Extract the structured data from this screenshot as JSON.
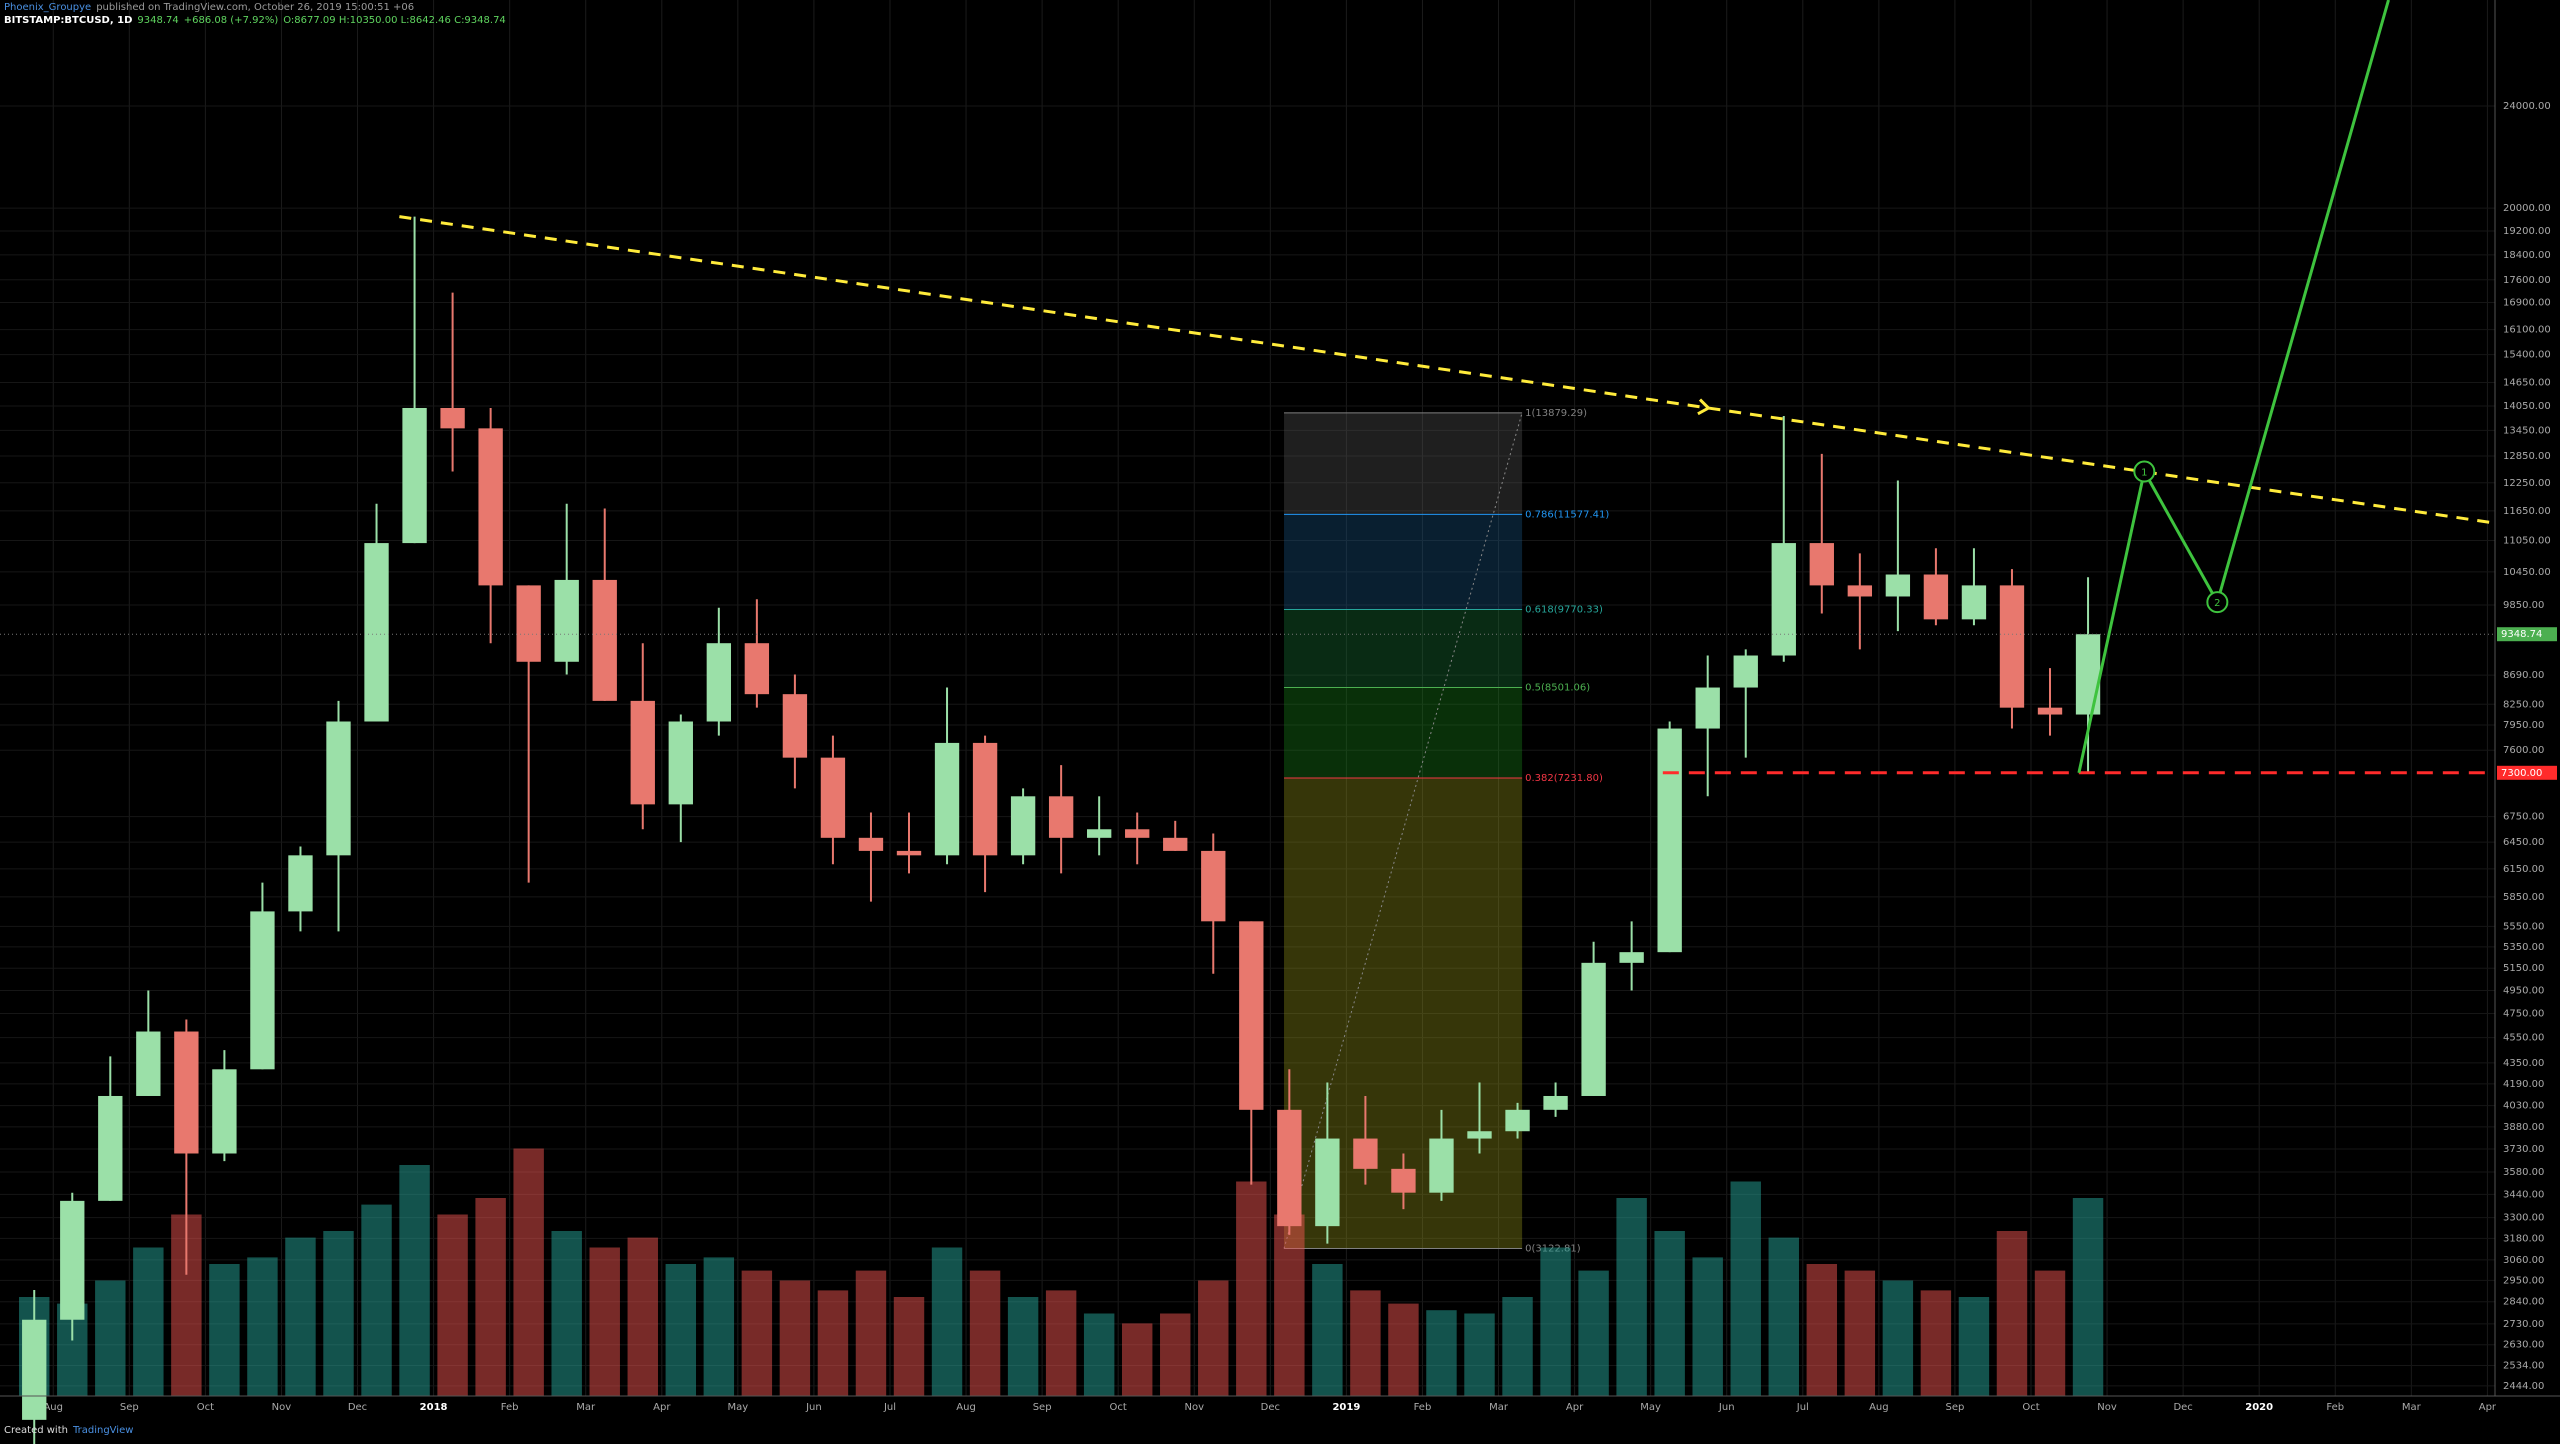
{
  "chart_data": {
    "type": "candlestick",
    "author": "Phoenix_Groupye",
    "title": "published on TradingView.com, October 26, 2019 15:00:51 +06",
    "legend": {
      "symbol": "BITSTAMP:BTCUSD, 1D",
      "last": "9348.74",
      "change": "+686.08 (+7.92%)",
      "ohlc": "O:8677.09 H:10350.00 L:8642.46 C:9348.74"
    },
    "footer": "Created with",
    "brand": "TradingView",
    "log_scale": true,
    "grid": true,
    "up_color": "#9be0a8",
    "down_color": "#e8786e",
    "volume_up_color": "#26a69a",
    "volume_down_color": "#ef5350",
    "x": [
      -0.5,
      0,
      0.5,
      1,
      1.5,
      2,
      2.5,
      3,
      3.5,
      4,
      4.5,
      5,
      5.5,
      6,
      6.5,
      7,
      7.5,
      8,
      8.5,
      9,
      9.5,
      10,
      10.5,
      11,
      11.5,
      12,
      12.5,
      13,
      13.5,
      14,
      14.5,
      15,
      15.5,
      16,
      16.5,
      17,
      17.5,
      18,
      18.5,
      19,
      19.5,
      20,
      20.5,
      21,
      21.5,
      22,
      22.5,
      23,
      23.5,
      24,
      24.5,
      25,
      25.5,
      26,
      26.5
    ],
    "open": [
      2300,
      2750,
      3400,
      4100,
      4600,
      3700,
      4300,
      5700,
      6300,
      8000,
      11000,
      14000,
      13500,
      10200,
      8900,
      10300,
      8300,
      6900,
      8000,
      9200,
      8400,
      7500,
      6500,
      6350,
      6300,
      7700,
      6300,
      7000,
      6500,
      6600,
      6500,
      6350,
      5600,
      4000,
      3250,
      3800,
      3600,
      3450,
      3800,
      3850,
      4000,
      4100,
      5200,
      5300,
      7900,
      8500,
      9000,
      11000,
      10200,
      10000,
      10400,
      9600,
      10200,
      8200,
      8100
    ],
    "high": [
      2900,
      3450,
      4400,
      4950,
      4700,
      4450,
      6000,
      6400,
      8300,
      11800,
      19700,
      17200,
      14000,
      10200,
      11800,
      11700,
      9200,
      8100,
      9800,
      9950,
      8700,
      7800,
      6800,
      6800,
      8500,
      7800,
      7100,
      7400,
      7000,
      6800,
      6700,
      6550,
      5600,
      4300,
      4200,
      4100,
      3700,
      4000,
      4200,
      4050,
      4200,
      5400,
      5600,
      8000,
      9000,
      9100,
      13800,
      12900,
      10800,
      12300,
      10900,
      10900,
      10500,
      8800,
      10350
    ],
    "low": [
      2200,
      2650,
      3400,
      4100,
      2980,
      3650,
      4300,
      5500,
      5500,
      8000,
      11000,
      12500,
      9200,
      6000,
      8700,
      8300,
      6600,
      6450,
      7800,
      8200,
      7100,
      6200,
      5800,
      6100,
      6200,
      5900,
      6200,
      6100,
      6300,
      6200,
      6350,
      5100,
      3500,
      3200,
      3150,
      3500,
      3350,
      3400,
      3700,
      3800,
      3950,
      4100,
      4950,
      5300,
      7000,
      7500,
      8900,
      9700,
      9100,
      9400,
      9500,
      9500,
      7900,
      7800,
      7300
    ],
    "close": [
      2750,
      3400,
      4100,
      4600,
      3700,
      4300,
      5700,
      6300,
      8000,
      11000,
      14000,
      13500,
      10200,
      8900,
      10300,
      8300,
      6900,
      8000,
      9200,
      8400,
      7500,
      6500,
      6350,
      6300,
      7700,
      6300,
      7000,
      6500,
      6600,
      6500,
      6350,
      5600,
      4000,
      3250,
      3800,
      3600,
      3450,
      3800,
      3850,
      4000,
      4100,
      5200,
      5300,
      7900,
      8500,
      9000,
      11000,
      10200,
      10000,
      10400,
      9600,
      10200,
      8200,
      8100,
      9348.74
    ],
    "volume": [
      30,
      28,
      35,
      45,
      55,
      40,
      42,
      48,
      50,
      58,
      70,
      55,
      60,
      75,
      50,
      45,
      48,
      40,
      42,
      38,
      35,
      32,
      38,
      30,
      45,
      38,
      30,
      32,
      25,
      22,
      25,
      35,
      65,
      55,
      40,
      32,
      28,
      26,
      25,
      30,
      45,
      38,
      60,
      50,
      42,
      65,
      48,
      40,
      38,
      35,
      32,
      30,
      50,
      38,
      60
    ],
    "vlim": [
      0,
      100
    ],
    "xlim": [
      -0.7,
      32.1
    ],
    "xticks": [
      {
        "value": 0,
        "label": "Aug"
      },
      {
        "value": 1,
        "label": "Sep"
      },
      {
        "value": 2,
        "label": "Oct"
      },
      {
        "value": 3,
        "label": "Nov"
      },
      {
        "value": 4,
        "label": "Dec"
      },
      {
        "value": 5,
        "label": "2018"
      },
      {
        "value": 6,
        "label": "Feb"
      },
      {
        "value": 7,
        "label": "Mar"
      },
      {
        "value": 8,
        "label": "Apr"
      },
      {
        "value": 9,
        "label": "May"
      },
      {
        "value": 10,
        "label": "Jun"
      },
      {
        "value": 11,
        "label": "Jul"
      },
      {
        "value": 12,
        "label": "Aug"
      },
      {
        "value": 13,
        "label": "Sep"
      },
      {
        "value": 14,
        "label": "Oct"
      },
      {
        "value": 15,
        "label": "Nov"
      },
      {
        "value": 16,
        "label": "Dec"
      },
      {
        "value": 17,
        "label": "2019"
      },
      {
        "value": 18,
        "label": "Feb"
      },
      {
        "value": 19,
        "label": "Mar"
      },
      {
        "value": 20,
        "label": "Apr"
      },
      {
        "value": 21,
        "label": "May"
      },
      {
        "value": 22,
        "label": "Jun"
      },
      {
        "value": 23,
        "label": "Jul"
      },
      {
        "value": 24,
        "label": "Aug"
      },
      {
        "value": 25,
        "label": "Sep"
      },
      {
        "value": 26,
        "label": "Oct"
      },
      {
        "value": 27,
        "label": "Nov"
      },
      {
        "value": 28,
        "label": "Dec"
      },
      {
        "value": 29,
        "label": "2020"
      },
      {
        "value": 30,
        "label": "Feb"
      },
      {
        "value": 31,
        "label": "Mar"
      },
      {
        "value": 32,
        "label": "Apr"
      }
    ],
    "ylim": [
      2400,
      29000
    ],
    "yticks": [
      {
        "value": 24000,
        "label": "24000.00"
      },
      {
        "value": 20000,
        "label": "20000.00"
      },
      {
        "value": 19200,
        "label": "19200.00"
      },
      {
        "value": 18400,
        "label": "18400.00"
      },
      {
        "value": 17600,
        "label": "17600.00"
      },
      {
        "value": 16900,
        "label": "16900.00"
      },
      {
        "value": 16100,
        "label": "16100.00"
      },
      {
        "value": 15400,
        "label": "15400.00"
      },
      {
        "value": 14650,
        "label": "14650.00"
      },
      {
        "value": 14050,
        "label": "14050.00"
      },
      {
        "value": 13450,
        "label": "13450.00"
      },
      {
        "value": 12850,
        "label": "12850.00"
      },
      {
        "value": 12250,
        "label": "12250.00"
      },
      {
        "value": 11650,
        "label": "11650.00"
      },
      {
        "value": 11050,
        "label": "11050.00"
      },
      {
        "value": 10450,
        "label": "10450.00"
      },
      {
        "value": 9850,
        "label": "9850.00"
      },
      {
        "value": 8690,
        "label": "8690.00"
      },
      {
        "value": 8250,
        "label": "8250.00"
      },
      {
        "value": 7950,
        "label": "7950.00"
      },
      {
        "value": 7600,
        "label": "7600.00"
      },
      {
        "value": 6750,
        "label": "6750.00"
      },
      {
        "value": 6450,
        "label": "6450.00"
      },
      {
        "value": 6150,
        "label": "6150.00"
      },
      {
        "value": 5850,
        "label": "5850.00"
      },
      {
        "value": 5550,
        "label": "5550.00"
      },
      {
        "value": 5350,
        "label": "5350.00"
      },
      {
        "value": 5150,
        "label": "5150.00"
      },
      {
        "value": 4950,
        "label": "4950.00"
      },
      {
        "value": 4750,
        "label": "4750.00"
      },
      {
        "value": 4550,
        "label": "4550.00"
      },
      {
        "value": 4350,
        "label": "4350.00"
      },
      {
        "value": 4190,
        "label": "4190.00"
      },
      {
        "value": 4030,
        "label": "4030.00"
      },
      {
        "value": 3880,
        "label": "3880.00"
      },
      {
        "value": 3730,
        "label": "3730.00"
      },
      {
        "value": 3580,
        "label": "3580.00"
      },
      {
        "value": 3440,
        "label": "3440.00"
      },
      {
        "value": 3300,
        "label": "3300.00"
      },
      {
        "value": 3180,
        "label": "3180.00"
      },
      {
        "value": 3060,
        "label": "3060.00"
      },
      {
        "value": 2950,
        "label": "2950.00"
      },
      {
        "value": 2840,
        "label": "2840.00"
      },
      {
        "value": 2730,
        "label": "2730.00"
      },
      {
        "value": 2630,
        "label": "2630.00"
      },
      {
        "value": 2534,
        "label": "2534.00"
      },
      {
        "value": 2444,
        "label": "2444.00"
      }
    ],
    "last_price": {
      "value": 9348.74,
      "label": "9348.74",
      "color": "#4caf50"
    },
    "support": {
      "value": 7300,
      "label": "7300.00",
      "x": 21.16,
      "color": "#ff2b2b"
    },
    "trendline": {
      "x": [
        4.55,
        32.1
      ],
      "y": [
        19700,
        11400
      ],
      "arrow_x": 21.76,
      "color": "#ffeb3b"
    },
    "fib": {
      "x": [
        16.18,
        19.31
      ],
      "levels": [
        {
          "value": 3122.81,
          "label": "0(3122.81)"
        },
        {
          "value": 7231.8,
          "label": "0.382(7231.80)"
        },
        {
          "value": 8501.06,
          "label": "0.5(8501.06)"
        },
        {
          "value": 9770.33,
          "label": "0.618(9770.33)"
        },
        {
          "value": 11577.41,
          "label": "0.786(11577.41)"
        },
        {
          "value": 13879.29,
          "label": "1(13879.29)"
        }
      ],
      "colors": [
        "#808080",
        "#f23645",
        "#4caf50",
        "#26a69a",
        "#2196f3",
        "#808080"
      ],
      "fills": [
        "#9b9b1a",
        "#1a8a1a",
        "#1a7a3a",
        "#1a5a8a",
        "#5a5a5a"
      ]
    },
    "projection": {
      "x": [
        26.63,
        27.49,
        28.45,
        30.7
      ],
      "y": [
        7300,
        12500,
        9900,
        29000
      ],
      "labels": [
        null,
        "1",
        "2",
        null
      ],
      "color": "#3ec33e"
    }
  }
}
